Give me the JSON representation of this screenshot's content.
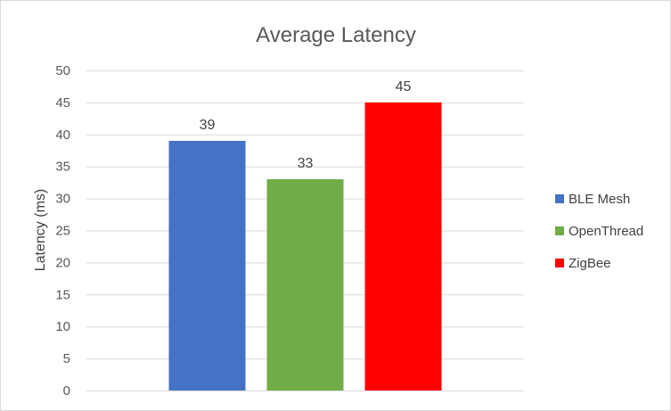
{
  "chart_data": {
    "type": "bar",
    "title": "Average Latency",
    "xlabel": "",
    "ylabel": "Latency  (ms)",
    "ylim": [
      0,
      50
    ],
    "yticks": [
      0,
      5,
      10,
      15,
      20,
      25,
      30,
      35,
      40,
      45,
      50
    ],
    "grid": true,
    "legend_position": "right",
    "series": [
      {
        "name": "BLE Mesh",
        "values": [
          39
        ],
        "color": "#4472C4"
      },
      {
        "name": "OpenThread",
        "values": [
          33
        ],
        "color": "#70AD47"
      },
      {
        "name": "ZigBee",
        "values": [
          45
        ],
        "color": "#FF0000"
      }
    ],
    "data_labels": [
      "39",
      "33",
      "45"
    ]
  }
}
